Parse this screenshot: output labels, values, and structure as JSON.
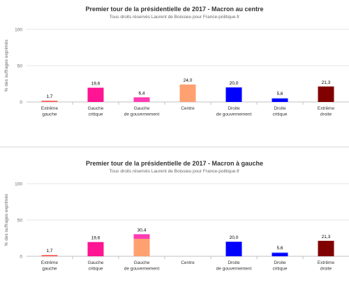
{
  "chart_data": [
    {
      "type": "bar",
      "title": "Premier tour de la présidentielle de 2017 - Macron au centre",
      "subtitle": "Tous droits réservés Laurent de Boissieu pour France-politique.fr",
      "xlabel": "",
      "ylabel": "% des suffrages exprimés",
      "ylim": [
        0,
        100
      ],
      "yticks": [
        "0",
        "50",
        "100"
      ],
      "grid": true,
      "categories": [
        [
          "Extrême",
          "gauche"
        ],
        [
          "Gauche",
          "critique"
        ],
        [
          "Gauche",
          "de gouvernement"
        ],
        [
          "Centre"
        ],
        [
          "Droite",
          "de gouvernement"
        ],
        [
          "Droite",
          "critique"
        ],
        [
          "Extrême",
          "droite"
        ]
      ],
      "values": [
        1.7,
        19.6,
        6.4,
        24.0,
        20.0,
        5.6,
        21.3
      ],
      "labels": [
        "1,7",
        "19,6",
        "6,4",
        "24,0",
        "20,0",
        "5,6",
        "21,3"
      ],
      "stacks": [
        [
          {
            "value": 1.7,
            "color": "#ff5a5a"
          }
        ],
        [
          {
            "value": 19.6,
            "color": "#ff1493"
          }
        ],
        [
          {
            "value": 6.4,
            "color": "#ff3cb4"
          }
        ],
        [
          {
            "value": 24.0,
            "color": "#ffa070"
          }
        ],
        [
          {
            "value": 20.0,
            "color": "#0000ff"
          }
        ],
        [
          {
            "value": 4.7,
            "color": "#0000ff"
          },
          {
            "value": 0.9,
            "color": "#9fb4ff"
          }
        ],
        [
          {
            "value": 21.3,
            "color": "#800000"
          }
        ]
      ]
    },
    {
      "type": "bar",
      "title": "Premier tour de la présidentielle de 2017 - Macron à gauche",
      "subtitle": "Tous droits réservés Laurent de Boissieu pour France-politique.fr",
      "xlabel": "",
      "ylabel": "% des suffrages exprimés",
      "ylim": [
        0,
        100
      ],
      "yticks": [
        "0",
        "50",
        "100"
      ],
      "grid": true,
      "categories": [
        [
          "Extrême",
          "gauche"
        ],
        [
          "Gauche",
          "critique"
        ],
        [
          "Gauche",
          "de gouvernement"
        ],
        [
          "Centre"
        ],
        [
          "Droite",
          "de gouvernement"
        ],
        [
          "Droite",
          "critique"
        ],
        [
          "Extrême",
          "droite"
        ]
      ],
      "values": [
        1.7,
        19.6,
        30.4,
        0,
        20.0,
        5.6,
        21.3
      ],
      "labels": [
        "1,7",
        "19,6",
        "30,4",
        "",
        "20,0",
        "5,6",
        "21,3"
      ],
      "stacks": [
        [
          {
            "value": 1.7,
            "color": "#ff5a5a"
          }
        ],
        [
          {
            "value": 19.6,
            "color": "#ff1493"
          }
        ],
        [
          {
            "value": 24.0,
            "color": "#ffa070"
          },
          {
            "value": 6.4,
            "color": "#ff3cb4"
          }
        ],
        [],
        [
          {
            "value": 20.0,
            "color": "#0000ff"
          }
        ],
        [
          {
            "value": 4.7,
            "color": "#0000ff"
          },
          {
            "value": 0.9,
            "color": "#9fb4ff"
          }
        ],
        [
          {
            "value": 21.3,
            "color": "#800000"
          }
        ]
      ]
    }
  ]
}
